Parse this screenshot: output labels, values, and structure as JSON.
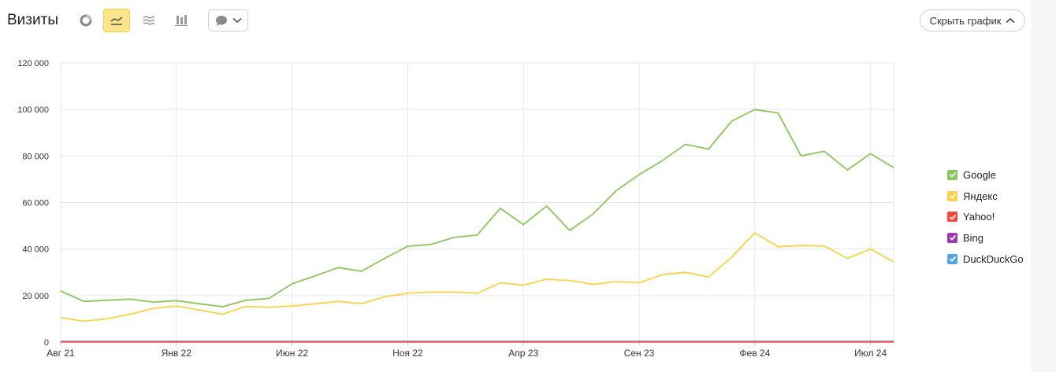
{
  "header": {
    "title": "Визиты",
    "icons": [
      "pie-chart-icon",
      "line-chart-icon",
      "stacked-area-icon",
      "stacked-bar-icon",
      "annotation-icon"
    ],
    "active_view": "line-chart",
    "hide_chart_label": "Скрыть график"
  },
  "colors": {
    "Google": "#8ac65a",
    "Яндекс": "#fbd244",
    "Yahoo!": "#f6483a",
    "Bing": "#9b3bb3",
    "DuckDuckGo": "#4ea6e8",
    "accent": "#fde68a"
  },
  "chart_data": {
    "type": "line",
    "title": "",
    "xlabel": "",
    "ylabel": "",
    "x_tick_labels": [
      "Авг 21",
      "Янв 22",
      "Июн 22",
      "Ноя 22",
      "Апр 23",
      "Сен 23",
      "Фев 24",
      "Июл 24"
    ],
    "y_tick_labels": [
      "0",
      "20 000",
      "40 000",
      "60 000",
      "80 000",
      "100 000",
      "120 000"
    ],
    "ylim": [
      0,
      120000
    ],
    "grid": true,
    "legend_position": "right",
    "x": [
      "2021-08",
      "2021-09",
      "2021-10",
      "2021-11",
      "2021-12",
      "2022-01",
      "2022-02",
      "2022-03",
      "2022-04",
      "2022-05",
      "2022-06",
      "2022-07",
      "2022-08",
      "2022-09",
      "2022-10",
      "2022-11",
      "2022-12",
      "2023-01",
      "2023-02",
      "2023-03",
      "2023-04",
      "2023-05",
      "2023-06",
      "2023-07",
      "2023-08",
      "2023-09",
      "2023-10",
      "2023-11",
      "2023-12",
      "2024-01",
      "2024-02",
      "2024-03",
      "2024-04",
      "2024-05",
      "2024-06",
      "2024-07",
      "2024-08"
    ],
    "series": [
      {
        "name": "Google",
        "values": [
          22000,
          17500,
          18000,
          18500,
          17200,
          17800,
          16500,
          15200,
          18000,
          18800,
          25000,
          28500,
          32000,
          30500,
          36000,
          41200,
          42000,
          45000,
          46000,
          57500,
          50500,
          58500,
          48000,
          55000,
          65000,
          72000,
          78000,
          85000,
          83000,
          95000,
          100000,
          98500,
          80000,
          82000,
          74000,
          81000,
          75000
        ]
      },
      {
        "name": "Яндекс",
        "values": [
          10500,
          9000,
          10000,
          12000,
          14500,
          15500,
          13800,
          12000,
          15300,
          15000,
          15500,
          16500,
          17500,
          16500,
          19500,
          21000,
          21500,
          21500,
          21000,
          25500,
          24500,
          27000,
          26500,
          24800,
          26000,
          25500,
          29000,
          30000,
          28000,
          36500,
          47000,
          41000,
          41500,
          41300,
          36000,
          40000,
          34500
        ]
      },
      {
        "name": "Yahoo!",
        "values": [
          150,
          150,
          150,
          150,
          150,
          150,
          150,
          150,
          150,
          150,
          150,
          150,
          150,
          150,
          150,
          150,
          150,
          150,
          150,
          150,
          150,
          150,
          150,
          150,
          150,
          150,
          150,
          150,
          150,
          150,
          150,
          150,
          150,
          150,
          150,
          150,
          150
        ]
      },
      {
        "name": "Bing",
        "values": [
          100,
          100,
          100,
          100,
          100,
          100,
          100,
          100,
          100,
          100,
          100,
          100,
          100,
          100,
          100,
          100,
          100,
          100,
          100,
          100,
          100,
          100,
          100,
          100,
          100,
          100,
          100,
          100,
          100,
          100,
          100,
          100,
          100,
          100,
          100,
          100,
          100
        ]
      },
      {
        "name": "DuckDuckGo",
        "values": [
          300,
          300,
          300,
          300,
          300,
          300,
          300,
          300,
          300,
          300,
          300,
          300,
          300,
          300,
          300,
          300,
          300,
          300,
          300,
          300,
          300,
          300,
          300,
          300,
          300,
          300,
          300,
          300,
          300,
          300,
          300,
          300,
          300,
          300,
          300,
          300,
          300
        ]
      }
    ]
  }
}
